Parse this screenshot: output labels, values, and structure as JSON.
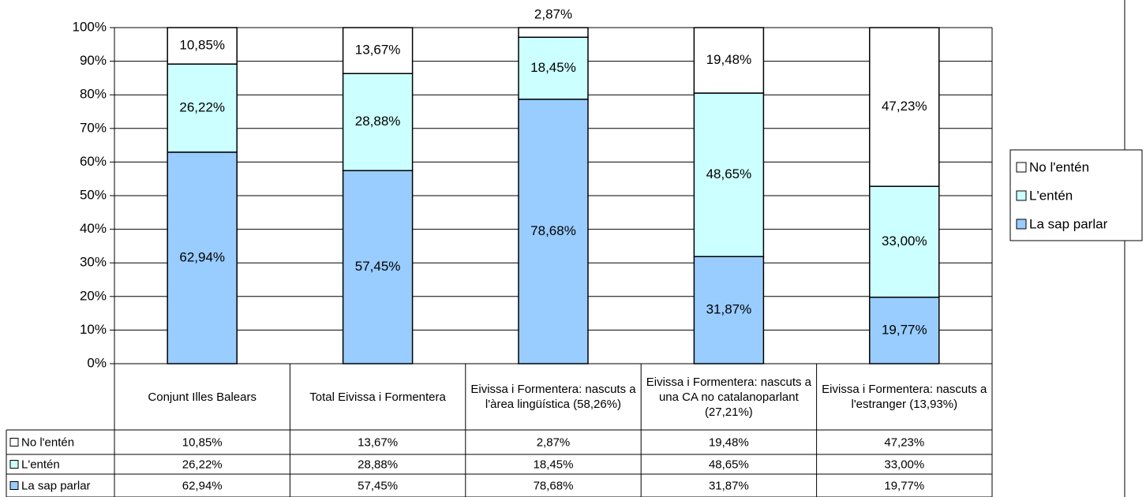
{
  "chart_data": {
    "type": "stacked_bar",
    "categories": [
      "Conjunt Illes Balears",
      "Total Eivissa i Formentera",
      "Eivissa i Formentera: nascuts a l'àrea lingüística (58,26%)",
      "Eivissa i Formentera: nascuts a una CA no catalanoparlant (27,21%)",
      "Eivissa i Formentera: nascuts a l'estranger (13,93%)"
    ],
    "series": [
      {
        "name": "No l'entén",
        "color": "#ffffff",
        "values": [
          10.85,
          13.67,
          2.87,
          19.48,
          47.23
        ],
        "value_labels": [
          "10,85%",
          "13,67%",
          "2,87%",
          "19,48%",
          "47,23%"
        ]
      },
      {
        "name": "L'entén",
        "color": "#ccffff",
        "values": [
          26.22,
          28.88,
          18.45,
          48.65,
          33.0
        ],
        "value_labels": [
          "26,22%",
          "28,88%",
          "18,45%",
          "48,65%",
          "33,00%"
        ]
      },
      {
        "name": "La sap parlar",
        "color": "#99ccff",
        "values": [
          62.94,
          57.45,
          78.68,
          31.87,
          19.77
        ],
        "value_labels": [
          "62,94%",
          "57,45%",
          "78,68%",
          "31,87%",
          "19,77%"
        ]
      }
    ],
    "ylim": [
      0,
      100
    ],
    "yticks": [
      {
        "value": 0,
        "label": "0%"
      },
      {
        "value": 10,
        "label": "10%"
      },
      {
        "value": 20,
        "label": "20%"
      },
      {
        "value": 30,
        "label": "30%"
      },
      {
        "value": 40,
        "label": "40%"
      },
      {
        "value": 50,
        "label": "50%"
      },
      {
        "value": 60,
        "label": "60%"
      },
      {
        "value": 70,
        "label": "70%"
      },
      {
        "value": 80,
        "label": "80%"
      },
      {
        "value": 90,
        "label": "90%"
      },
      {
        "value": 100,
        "label": "100%"
      }
    ],
    "grid": true,
    "legend": "right"
  }
}
